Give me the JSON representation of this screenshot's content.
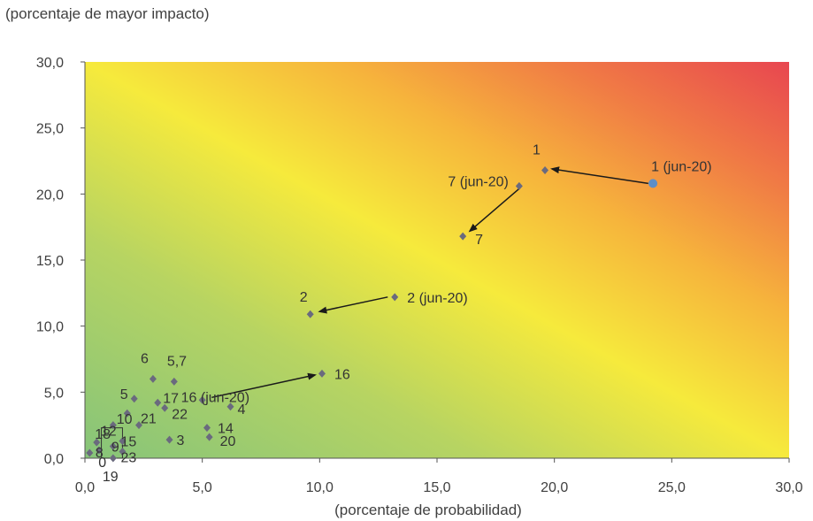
{
  "chart_data": {
    "type": "scatter",
    "title": "",
    "ylabel": "(porcentaje de mayor impacto)",
    "xlabel": "(porcentaje de probabilidad)",
    "xlim": [
      0,
      30
    ],
    "ylim": [
      0,
      30
    ],
    "xticks": [
      "0,0",
      "5,0",
      "10,0",
      "15,0",
      "20,0",
      "25,0",
      "30,0"
    ],
    "yticks": [
      "0,0",
      "5,0",
      "10,0",
      "15,0",
      "20,0",
      "25,0",
      "30,0"
    ],
    "background": "risk heatmap gradient (green at origin, yellow on diagonal, red at top-right)",
    "colors": {
      "green": "#8cc97a",
      "yellow": "#f7ea3a",
      "orange": "#f5a23a",
      "red": "#e8484f",
      "point": "#6a6a7e",
      "point_prev": "#5b8ec9",
      "arrow": "#1a1a1a"
    },
    "points": [
      {
        "label": "1",
        "x": 19.6,
        "y": 21.8
      },
      {
        "label": "1 (jun-20)",
        "x": 24.2,
        "y": 20.8,
        "prev": true
      },
      {
        "label": "7 (jun-20)",
        "x": 18.5,
        "y": 20.6
      },
      {
        "label": "7",
        "x": 16.1,
        "y": 16.8
      },
      {
        "label": "2 (jun-20)",
        "x": 13.2,
        "y": 12.2
      },
      {
        "label": "2",
        "x": 9.6,
        "y": 10.9
      },
      {
        "label": "16",
        "x": 10.1,
        "y": 6.4
      },
      {
        "label": "16 (jun-20)",
        "x": 5.0,
        "y": 4.4
      },
      {
        "label": "6",
        "x": 2.9,
        "y": 6.0
      },
      {
        "label": "5,7",
        "x": 3.8,
        "y": 5.8
      },
      {
        "label": "5",
        "x": 2.1,
        "y": 4.5
      },
      {
        "label": "17",
        "x": 3.1,
        "y": 4.2
      },
      {
        "label": "10",
        "x": 1.8,
        "y": 3.4
      },
      {
        "label": "22",
        "x": 3.4,
        "y": 3.8
      },
      {
        "label": "4",
        "x": 6.2,
        "y": 3.9
      },
      {
        "label": "12",
        "x": 1.2,
        "y": 2.5
      },
      {
        "label": "21",
        "x": 2.3,
        "y": 2.5
      },
      {
        "label": "14",
        "x": 5.2,
        "y": 2.3
      },
      {
        "label": "18",
        "x": 0.5,
        "y": 1.2
      },
      {
        "label": "3",
        "x": 3.6,
        "y": 1.4
      },
      {
        "label": "15",
        "x": 1.6,
        "y": 1.3
      },
      {
        "label": "9",
        "x": 1.2,
        "y": 0.9
      },
      {
        "label": "20",
        "x": 5.3,
        "y": 1.6
      },
      {
        "label": "8",
        "x": 0.6,
        "y": 0.6
      },
      {
        "label": "23",
        "x": 1.6,
        "y": 0.5
      },
      {
        "label": "0",
        "x": 0.2,
        "y": 0.4
      },
      {
        "label": "19",
        "x": 1.2,
        "y": 0.0
      }
    ],
    "arrows": [
      {
        "from": [
          24.0,
          20.8
        ],
        "to": [
          19.9,
          21.9
        ]
      },
      {
        "from": [
          18.5,
          20.4
        ],
        "to": [
          16.4,
          17.2
        ]
      },
      {
        "from": [
          12.9,
          12.2
        ],
        "to": [
          10.0,
          11.1
        ]
      },
      {
        "from": [
          5.4,
          4.6
        ],
        "to": [
          9.8,
          6.3
        ]
      }
    ]
  }
}
